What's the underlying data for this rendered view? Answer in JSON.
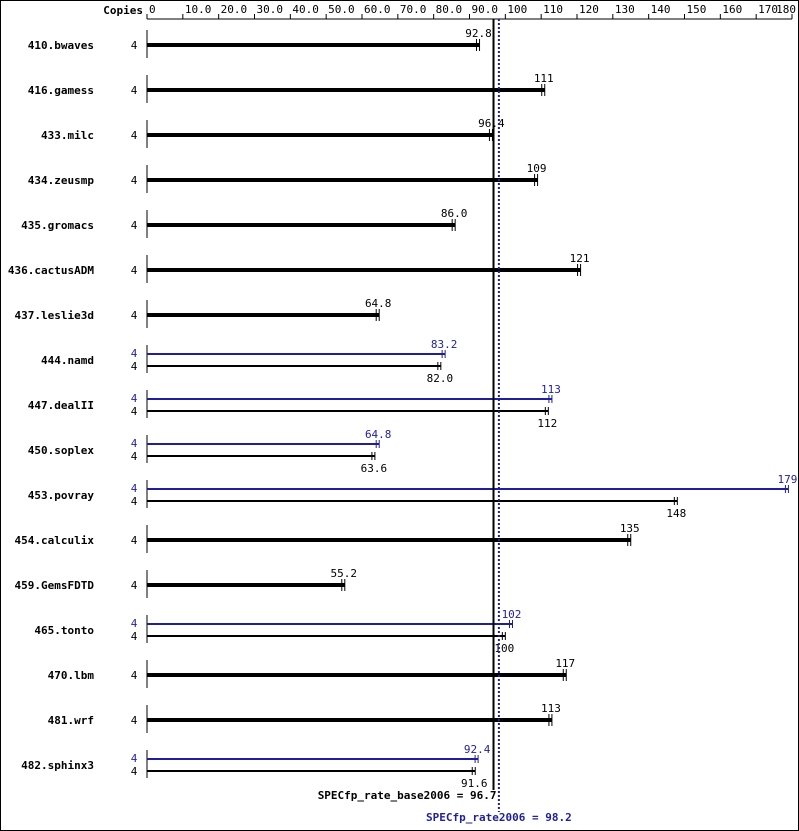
{
  "chart_data": {
    "type": "bar",
    "copies_label": "Copies",
    "x_ticks": [
      {
        "value": 0,
        "label": "0"
      },
      {
        "value": 10,
        "label": "10.0"
      },
      {
        "value": 20,
        "label": "20.0"
      },
      {
        "value": 30,
        "label": "30.0"
      },
      {
        "value": 40,
        "label": "40.0"
      },
      {
        "value": 50,
        "label": "50.0"
      },
      {
        "value": 60,
        "label": "60.0"
      },
      {
        "value": 70,
        "label": "70.0"
      },
      {
        "value": 80,
        "label": "80.0"
      },
      {
        "value": 90,
        "label": "90.0"
      },
      {
        "value": 100,
        "label": "100"
      },
      {
        "value": 110,
        "label": "110"
      },
      {
        "value": 120,
        "label": "120"
      },
      {
        "value": 130,
        "label": "130"
      },
      {
        "value": 140,
        "label": "140"
      },
      {
        "value": 150,
        "label": "150"
      },
      {
        "value": 160,
        "label": "160"
      },
      {
        "value": 170,
        "label": "170"
      },
      {
        "value": 180,
        "label": "180"
      }
    ],
    "xlim": [
      0,
      180
    ],
    "colors": {
      "base": "#000000",
      "peak": "#1f1f9c"
    },
    "benchmarks": [
      {
        "name": "410.bwaves",
        "copies": "4",
        "base": 92.8,
        "base_label": "92.8"
      },
      {
        "name": "416.gamess",
        "copies": "4",
        "base": 111,
        "base_label": "111"
      },
      {
        "name": "433.milc",
        "copies": "4",
        "base": 96.4,
        "base_label": "96.4"
      },
      {
        "name": "434.zeusmp",
        "copies": "4",
        "base": 109,
        "base_label": "109"
      },
      {
        "name": "435.gromacs",
        "copies": "4",
        "base": 86.0,
        "base_label": "86.0"
      },
      {
        "name": "436.cactusADM",
        "copies": "4",
        "base": 121,
        "base_label": "121"
      },
      {
        "name": "437.leslie3d",
        "copies": "4",
        "base": 64.8,
        "base_label": "64.8"
      },
      {
        "name": "444.namd",
        "copies": "4",
        "peak_copies": "4",
        "peak": 83.2,
        "peak_label": "83.2",
        "base": 82.0,
        "base_label": "82.0"
      },
      {
        "name": "447.dealII",
        "copies": "4",
        "peak_copies": "4",
        "peak": 113,
        "peak_label": "113",
        "base": 112,
        "base_label": "112"
      },
      {
        "name": "450.soplex",
        "copies": "4",
        "peak_copies": "4",
        "peak": 64.8,
        "peak_label": "64.8",
        "base": 63.6,
        "base_label": "63.6"
      },
      {
        "name": "453.povray",
        "copies": "4",
        "peak_copies": "4",
        "peak": 179,
        "peak_label": "179",
        "base": 148,
        "base_label": "148"
      },
      {
        "name": "454.calculix",
        "copies": "4",
        "base": 135,
        "base_label": "135"
      },
      {
        "name": "459.GemsFDTD",
        "copies": "4",
        "base": 55.2,
        "base_label": "55.2"
      },
      {
        "name": "465.tonto",
        "copies": "4",
        "peak_copies": "4",
        "peak": 102,
        "peak_label": "102",
        "base": 100,
        "base_label": "100"
      },
      {
        "name": "470.lbm",
        "copies": "4",
        "base": 117,
        "base_label": "117"
      },
      {
        "name": "481.wrf",
        "copies": "4",
        "base": 113,
        "base_label": "113"
      },
      {
        "name": "482.sphinx3",
        "copies": "4",
        "peak_copies": "4",
        "peak": 92.4,
        "peak_label": "92.4",
        "base": 91.6,
        "base_label": "91.6"
      }
    ],
    "base_metric": {
      "label": "SPECfp_rate_base2006 = 96.7",
      "value": 96.7
    },
    "peak_metric": {
      "label": "SPECfp_rate2006 = 98.2",
      "value": 98.2
    }
  }
}
